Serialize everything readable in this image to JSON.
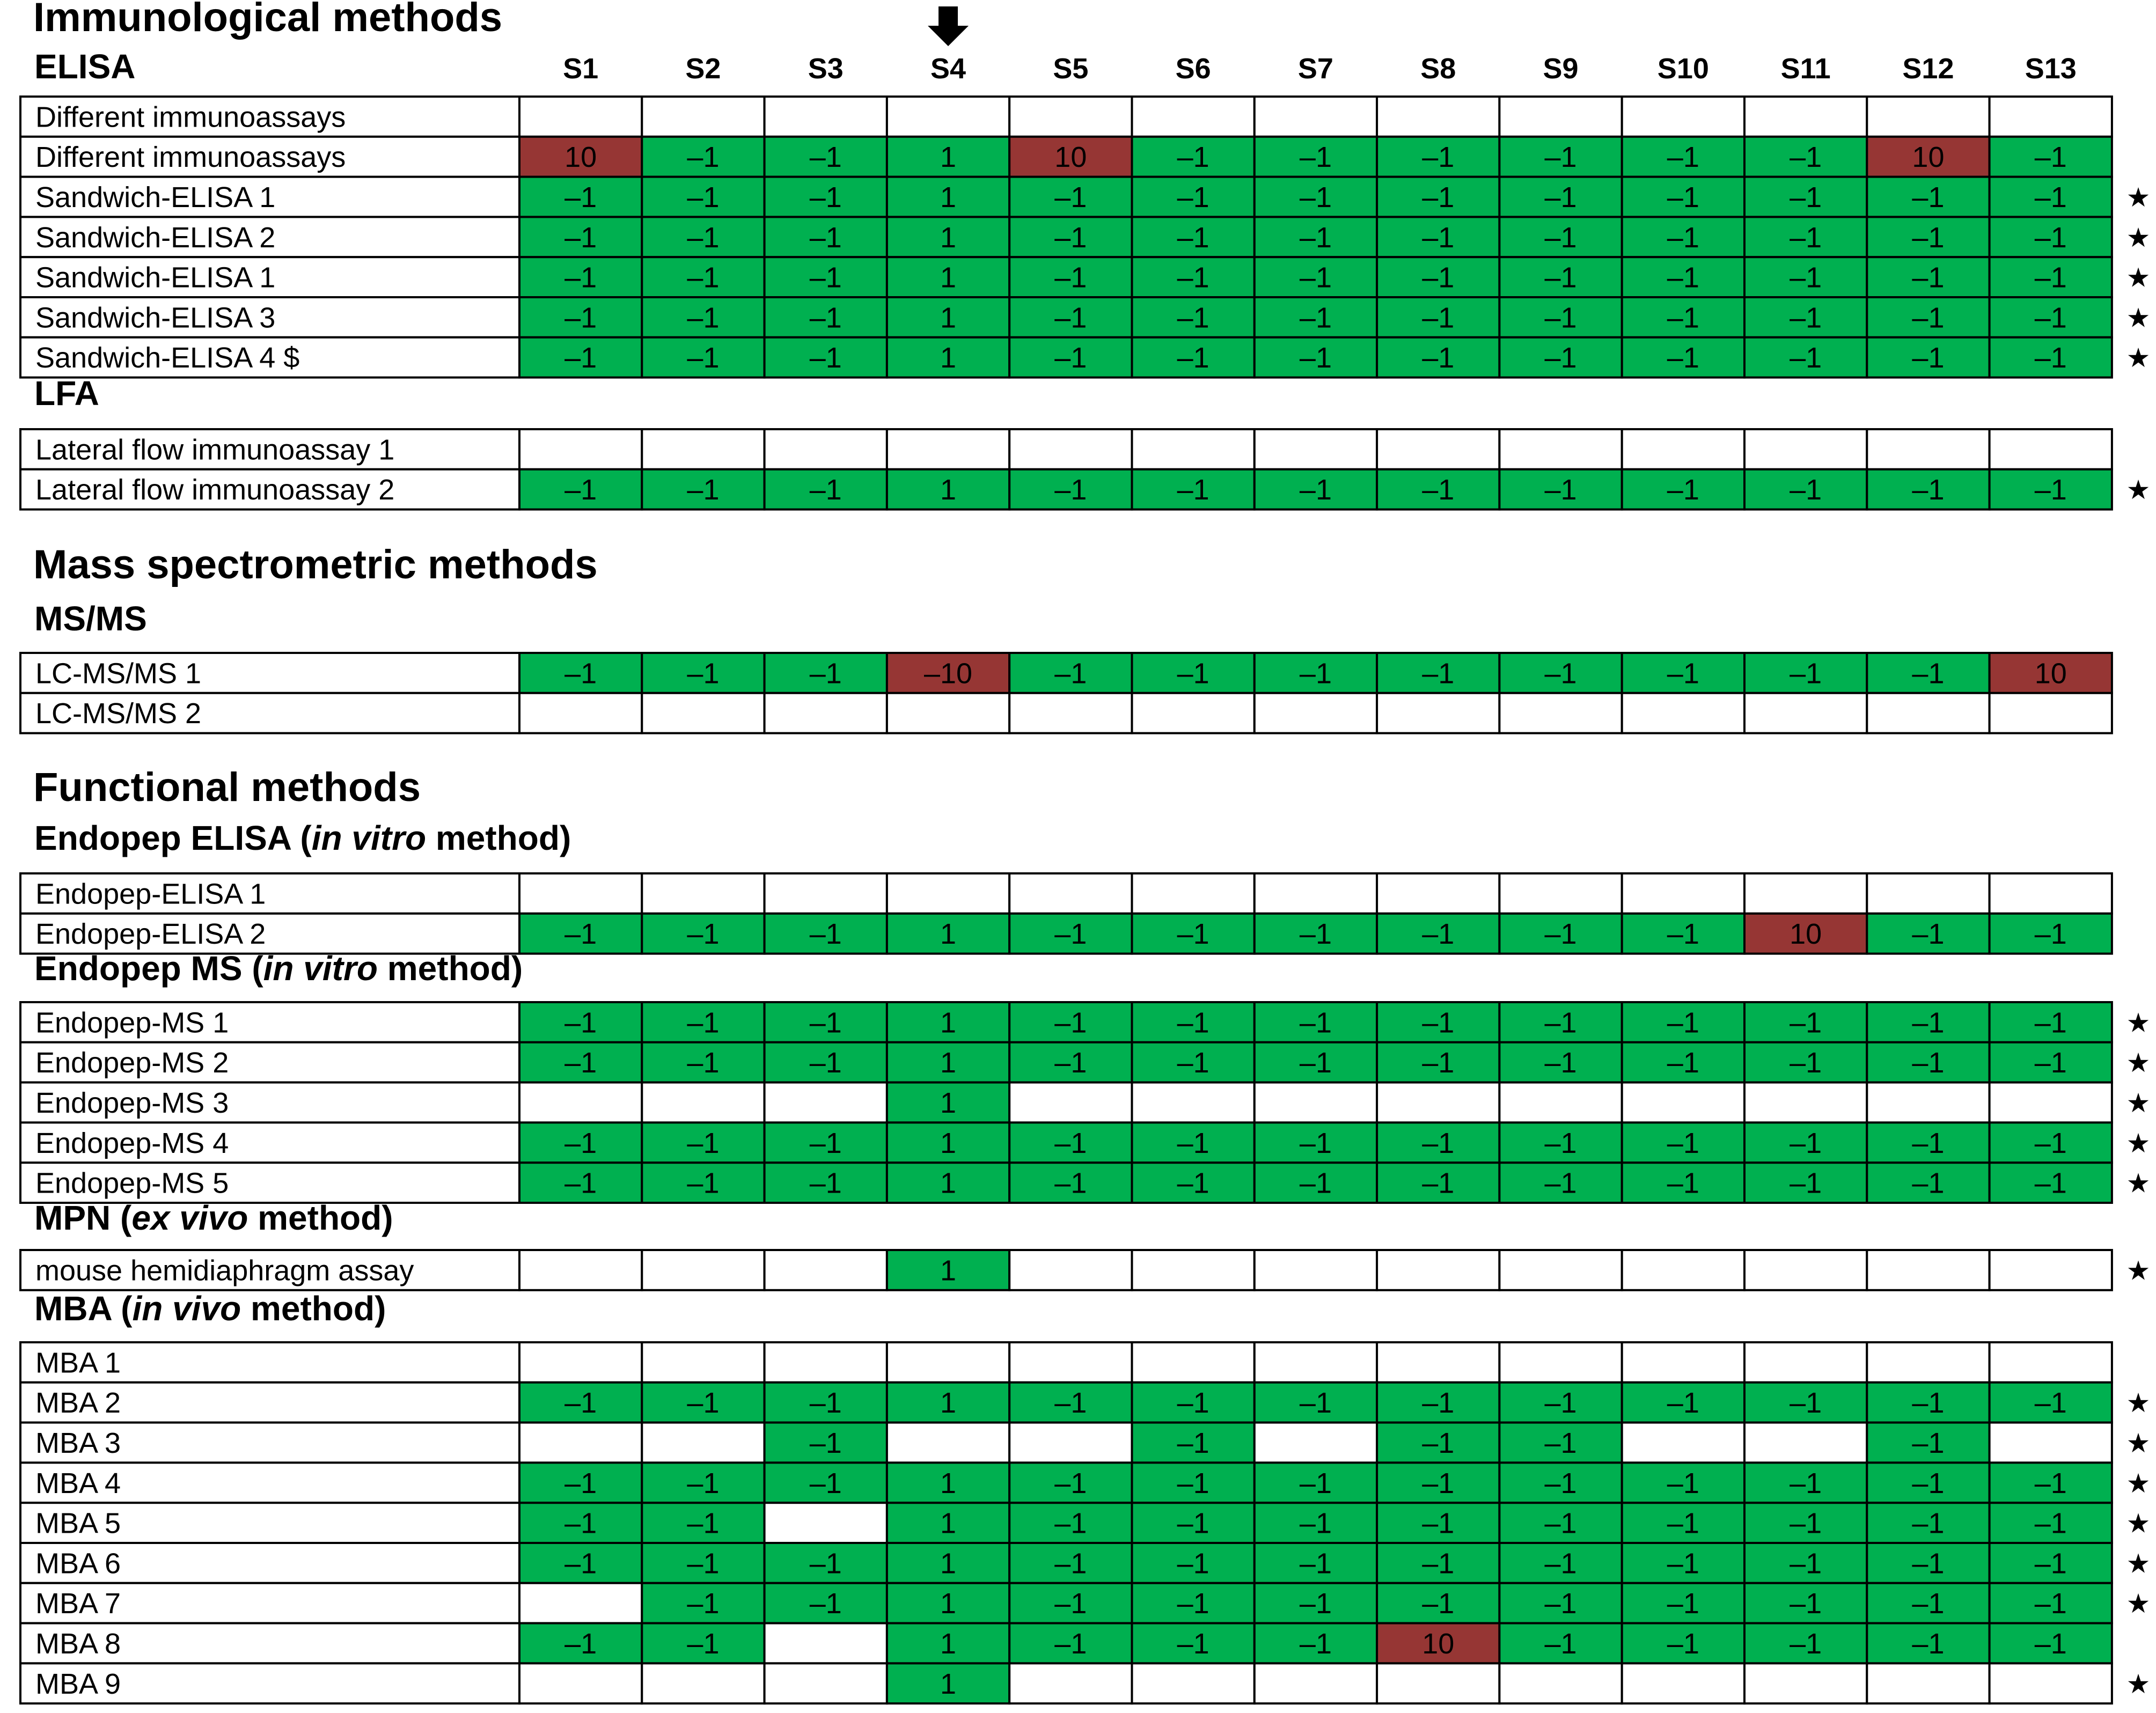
{
  "colors": {
    "negative": "#00B050",
    "positive": "#963634",
    "empty": "#FFFFFF",
    "grid": "#000000"
  },
  "columns": [
    "S1",
    "S2",
    "S3",
    "S4",
    "S5",
    "S6",
    "S7",
    "S8",
    "S9",
    "S10",
    "S11",
    "S12",
    "S13"
  ],
  "marker": {
    "icon": "down-arrow-icon",
    "column": "S4"
  },
  "sections": [
    {
      "title": "Immunological methods",
      "groups": [
        {
          "title": "ELISA",
          "rows": [
            {
              "label": "Different immunoassays",
              "values": [
                null,
                null,
                null,
                null,
                null,
                null,
                null,
                null,
                null,
                null,
                null,
                null,
                null
              ],
              "star": false
            },
            {
              "label": "Different immunoassays",
              "values": [
                "10",
                "–1",
                "–1",
                "1",
                "10",
                "–1",
                "–1",
                "–1",
                "–1",
                "–1",
                "–1",
                "10",
                "–1"
              ],
              "star": false
            },
            {
              "label": "Sandwich-ELISA 1",
              "values": [
                "–1",
                "–1",
                "–1",
                "1",
                "–1",
                "–1",
                "–1",
                "–1",
                "–1",
                "–1",
                "–1",
                "–1",
                "–1"
              ],
              "star": true
            },
            {
              "label": "Sandwich-ELISA 2",
              "values": [
                "–1",
                "–1",
                "–1",
                "1",
                "–1",
                "–1",
                "–1",
                "–1",
                "–1",
                "–1",
                "–1",
                "–1",
                "–1"
              ],
              "star": true
            },
            {
              "label": "Sandwich-ELISA 1",
              "values": [
                "–1",
                "–1",
                "–1",
                "1",
                "–1",
                "–1",
                "–1",
                "–1",
                "–1",
                "–1",
                "–1",
                "–1",
                "–1"
              ],
              "star": true
            },
            {
              "label": "Sandwich-ELISA 3",
              "values": [
                "–1",
                "–1",
                "–1",
                "1",
                "–1",
                "–1",
                "–1",
                "–1",
                "–1",
                "–1",
                "–1",
                "–1",
                "–1"
              ],
              "star": true
            },
            {
              "label": "Sandwich-ELISA 4  $",
              "values": [
                "–1",
                "–1",
                "–1",
                "1",
                "–1",
                "–1",
                "–1",
                "–1",
                "–1",
                "–1",
                "–1",
                "–1",
                "–1"
              ],
              "star": true
            }
          ]
        },
        {
          "title": "LFA",
          "rows": [
            {
              "label": "Lateral flow immunoassay 1",
              "values": [
                null,
                null,
                null,
                null,
                null,
                null,
                null,
                null,
                null,
                null,
                null,
                null,
                null
              ],
              "star": false
            },
            {
              "label": "Lateral flow immunoassay 2",
              "values": [
                "–1",
                "–1",
                "–1",
                "1",
                "–1",
                "–1",
                "–1",
                "–1",
                "–1",
                "–1",
                "–1",
                "–1",
                "–1"
              ],
              "star": true
            }
          ]
        }
      ]
    },
    {
      "title": "Mass spectrometric methods",
      "groups": [
        {
          "title": "MS/MS",
          "rows": [
            {
              "label": "LC-MS/MS 1",
              "values": [
                "–1",
                "–1",
                "–1",
                "–10",
                "–1",
                "–1",
                "–1",
                "–1",
                "–1",
                "–1",
                "–1",
                "–1",
                "10"
              ],
              "star": false
            },
            {
              "label": "LC-MS/MS 2",
              "values": [
                null,
                null,
                null,
                null,
                null,
                null,
                null,
                null,
                null,
                null,
                null,
                null,
                null
              ],
              "star": false
            }
          ]
        }
      ]
    },
    {
      "title": "Functional methods",
      "groups": [
        {
          "title_parts": [
            "Endopep ELISA (",
            "in vitro",
            " method)"
          ],
          "rows": [
            {
              "label": "Endopep-ELISA 1",
              "values": [
                null,
                null,
                null,
                null,
                null,
                null,
                null,
                null,
                null,
                null,
                null,
                null,
                null
              ],
              "star": false
            },
            {
              "label": "Endopep-ELISA 2",
              "values": [
                "–1",
                "–1",
                "–1",
                "1",
                "–1",
                "–1",
                "–1",
                "–1",
                "–1",
                "–1",
                "10",
                "–1",
                "–1"
              ],
              "star": false
            }
          ]
        },
        {
          "title_parts": [
            "Endopep MS (",
            "in vitro",
            " method)"
          ],
          "rows": [
            {
              "label": "Endopep-MS 1",
              "values": [
                "–1",
                "–1",
                "–1",
                "1",
                "–1",
                "–1",
                "–1",
                "–1",
                "–1",
                "–1",
                "–1",
                "–1",
                "–1"
              ],
              "star": true
            },
            {
              "label": "Endopep-MS 2",
              "values": [
                "–1",
                "–1",
                "–1",
                "1",
                "–1",
                "–1",
                "–1",
                "–1",
                "–1",
                "–1",
                "–1",
                "–1",
                "–1"
              ],
              "star": true
            },
            {
              "label": "Endopep-MS 3",
              "values": [
                null,
                null,
                null,
                "1",
                null,
                null,
                null,
                null,
                null,
                null,
                null,
                null,
                null
              ],
              "star": true
            },
            {
              "label": "Endopep-MS 4",
              "values": [
                "–1",
                "–1",
                "–1",
                "1",
                "–1",
                "–1",
                "–1",
                "–1",
                "–1",
                "–1",
                "–1",
                "–1",
                "–1"
              ],
              "star": true
            },
            {
              "label": "Endopep-MS 5",
              "values": [
                "–1",
                "–1",
                "–1",
                "1",
                "–1",
                "–1",
                "–1",
                "–1",
                "–1",
                "–1",
                "–1",
                "–1",
                "–1"
              ],
              "star": true
            }
          ]
        },
        {
          "title_parts": [
            "MPN (",
            "ex vivo",
            " method)"
          ],
          "rows": [
            {
              "label": "mouse hemidiaphragm assay",
              "values": [
                null,
                null,
                null,
                "1",
                null,
                null,
                null,
                null,
                null,
                null,
                null,
                null,
                null
              ],
              "star": true
            }
          ]
        },
        {
          "title_parts": [
            "MBA (",
            "in vivo",
            " method)"
          ],
          "rows": [
            {
              "label": "MBA 1",
              "values": [
                null,
                null,
                null,
                null,
                null,
                null,
                null,
                null,
                null,
                null,
                null,
                null,
                null
              ],
              "star": false
            },
            {
              "label": "MBA 2",
              "values": [
                "–1",
                "–1",
                "–1",
                "1",
                "–1",
                "–1",
                "–1",
                "–1",
                "–1",
                "–1",
                "–1",
                "–1",
                "–1"
              ],
              "star": true
            },
            {
              "label": "MBA 3",
              "values": [
                null,
                null,
                "–1",
                null,
                null,
                "–1",
                null,
                "–1",
                "–1",
                null,
                null,
                "–1",
                null
              ],
              "star": true
            },
            {
              "label": "MBA 4",
              "values": [
                "–1",
                "–1",
                "–1",
                "1",
                "–1",
                "–1",
                "–1",
                "–1",
                "–1",
                "–1",
                "–1",
                "–1",
                "–1"
              ],
              "star": true
            },
            {
              "label": "MBA 5",
              "values": [
                "–1",
                "–1",
                null,
                "1",
                "–1",
                "–1",
                "–1",
                "–1",
                "–1",
                "–1",
                "–1",
                "–1",
                "–1"
              ],
              "star": true
            },
            {
              "label": "MBA 6",
              "values": [
                "–1",
                "–1",
                "–1",
                "1",
                "–1",
                "–1",
                "–1",
                "–1",
                "–1",
                "–1",
                "–1",
                "–1",
                "–1"
              ],
              "star": true
            },
            {
              "label": "MBA 7",
              "values": [
                null,
                "–1",
                "–1",
                "1",
                "–1",
                "–1",
                "–1",
                "–1",
                "–1",
                "–1",
                "–1",
                "–1",
                "–1"
              ],
              "star": true
            },
            {
              "label": "MBA 8",
              "values": [
                "–1",
                "–1",
                null,
                "1",
                "–1",
                "–1",
                "–1",
                "10",
                "–1",
                "–1",
                "–1",
                "–1",
                "–1"
              ],
              "star": false
            },
            {
              "label": "MBA 9",
              "values": [
                null,
                null,
                null,
                "1",
                null,
                null,
                null,
                null,
                null,
                null,
                null,
                null,
                null
              ],
              "star": true
            }
          ]
        }
      ]
    }
  ],
  "star_glyph": "★",
  "chart_data": {
    "type": "heatmap",
    "x": [
      "S1",
      "S2",
      "S3",
      "S4",
      "S5",
      "S6",
      "S7",
      "S8",
      "S9",
      "S10",
      "S11",
      "S12",
      "S13"
    ],
    "legend": {
      "–1": "green",
      "1": "green",
      "10": "dark red",
      "–10": "dark red",
      "empty": "white"
    }
  }
}
